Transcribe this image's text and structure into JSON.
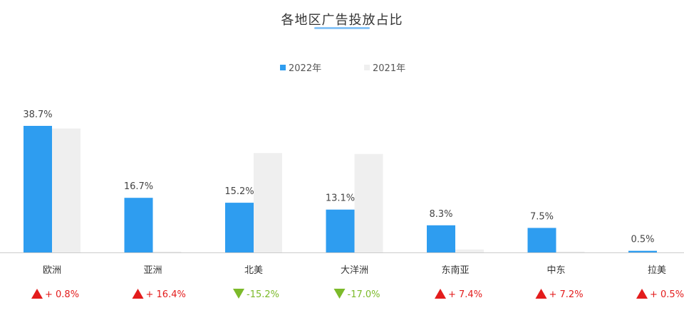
{
  "chart_data": {
    "type": "bar",
    "title": "各地区广告投放占比",
    "categories": [
      "欧洲",
      "亚洲",
      "北美",
      "大洋洲",
      "东南亚",
      "中东",
      "拉美"
    ],
    "series": [
      {
        "name": "2022年",
        "color": "#2e9df0",
        "values": [
          38.7,
          16.7,
          15.2,
          13.1,
          8.3,
          7.5,
          0.5
        ]
      },
      {
        "name": "2021年",
        "color": "#efefef",
        "values": [
          37.9,
          0.3,
          30.4,
          30.1,
          0.9,
          0.3,
          0.0
        ]
      }
    ],
    "data_labels": [
      "38.7%",
      "16.7%",
      "15.2%",
      "13.1%",
      "8.3%",
      "7.5%",
      "0.5%"
    ],
    "changes": [
      {
        "text": "+ 0.8%",
        "direction": "up",
        "color": "#e31c1c"
      },
      {
        "text": "+ 16.4%",
        "direction": "up",
        "color": "#e31c1c"
      },
      {
        "text": "-15.2%",
        "direction": "down",
        "color": "#7cba2a"
      },
      {
        "text": "-17.0%",
        "direction": "down",
        "color": "#7cba2a"
      },
      {
        "text": "+ 7.4%",
        "direction": "up",
        "color": "#e31c1c"
      },
      {
        "text": "+ 7.2%",
        "direction": "up",
        "color": "#e31c1c"
      },
      {
        "text": "+ 0.5%",
        "direction": "up",
        "color": "#e31c1c"
      }
    ],
    "ylim": [
      0,
      38.7
    ],
    "grid": false,
    "legend_position": "top-center",
    "axis_color": "#cccccc"
  }
}
